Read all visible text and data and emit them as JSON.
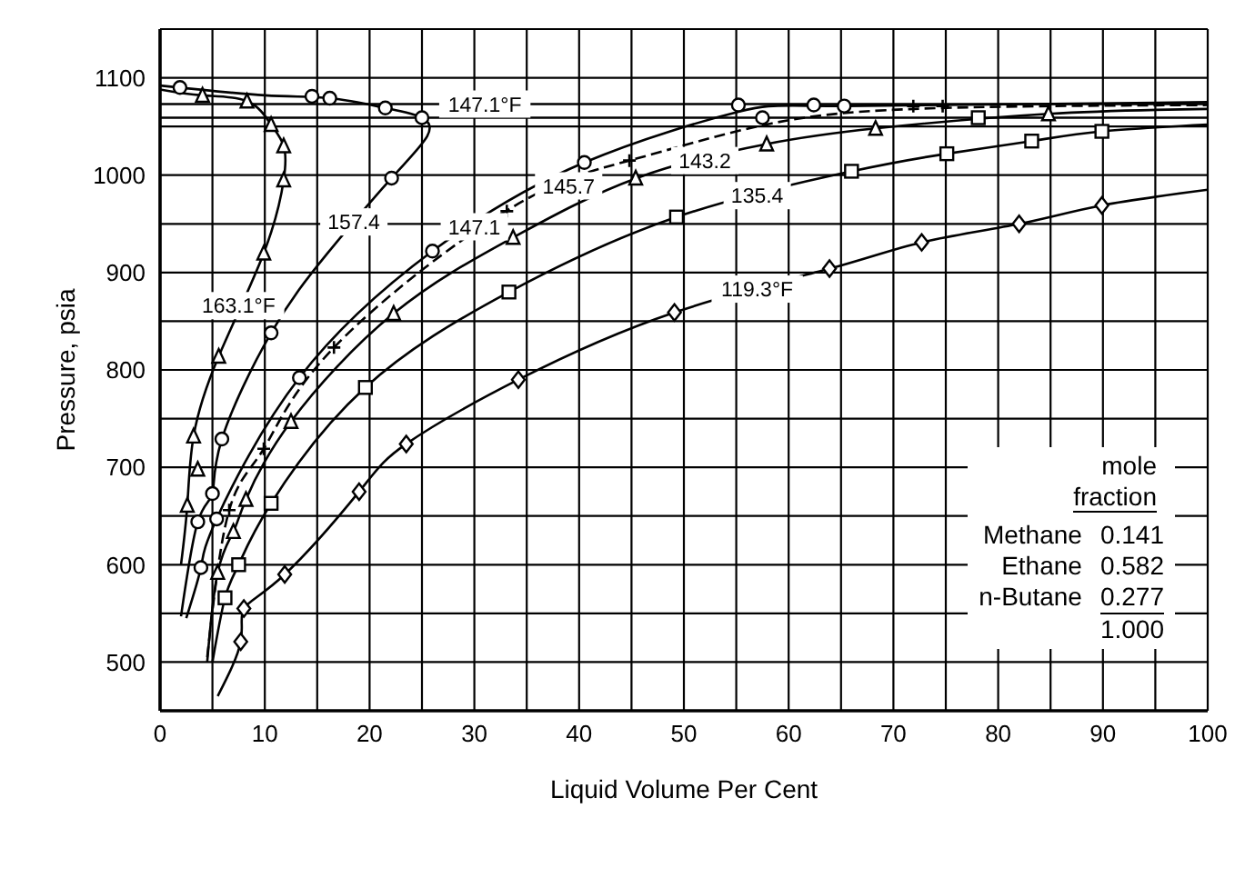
{
  "chart_data": {
    "type": "line",
    "xlabel": "Liquid Volume Per Cent",
    "ylabel": "Pressure, psia",
    "xlim": [
      0,
      100
    ],
    "ylim": [
      450,
      1150
    ],
    "xticks": [
      0,
      {
        "value": 5,
        "label": null
      },
      10,
      {
        "value": 15,
        "label": null
      },
      20,
      {
        "value": 25,
        "label": null
      },
      30,
      {
        "value": 35,
        "label": null
      },
      40,
      {
        "value": 45,
        "label": null
      },
      50,
      {
        "value": 55,
        "label": null
      },
      60,
      {
        "value": 65,
        "label": null
      },
      70,
      {
        "value": 75,
        "label": null
      },
      80,
      {
        "value": 85,
        "label": null
      },
      90,
      {
        "value": 95,
        "label": null
      },
      100
    ],
    "yticks": [
      {
        "value": 450,
        "label": null
      },
      500,
      {
        "value": 550,
        "label": null
      },
      600,
      {
        "value": 650,
        "label": null
      },
      700,
      {
        "value": 750,
        "label": null
      },
      800,
      {
        "value": 850,
        "label": null
      },
      900,
      {
        "value": 950,
        "label": null
      },
      1000,
      {
        "value": 1050,
        "label": null
      },
      1100,
      {
        "value": 1150,
        "label": null
      }
    ],
    "grid": true,
    "legend": false,
    "line_style": "solid",
    "series": [
      {
        "type": "line",
        "marker": "none",
        "color": "#000000",
        "x": [
          0,
          4,
          8.3,
          10.6,
          11.8,
          11.8,
          9.9,
          5.6,
          3.2,
          2.6,
          2.0
        ],
        "values": [
          1088,
          1082,
          1076,
          1052,
          1030,
          995,
          920,
          814,
          732,
          661,
          600
        ]
      },
      {
        "type": "line",
        "marker": "none",
        "color": "#000000",
        "x": [
          0,
          10,
          16.2,
          21.5,
          25,
          25.5,
          22.1,
          16,
          10.6,
          5.9,
          5.0,
          3.6,
          2.0
        ],
        "values": [
          1092,
          1082,
          1079,
          1069,
          1059,
          1040,
          997,
          920,
          838,
          729,
          673,
          644,
          547
        ]
      },
      {
        "type": "line",
        "marker": "none",
        "color": "#000000",
        "x": [
          2.5,
          3.9,
          5.4,
          13.3,
          26,
          40.5,
          55.2,
          65.3,
          100
        ],
        "values": [
          545,
          597,
          647,
          792,
          922,
          1013,
          1065,
          1071,
          1075
        ]
      },
      {
        "type": "line",
        "marker": "none",
        "color": "#000000",
        "line_style": "dashed",
        "x": [
          4.5,
          6.6,
          9.9,
          16.6,
          33,
          44.8,
          57,
          71.9,
          100
        ],
        "values": [
          505,
          656,
          719,
          823,
          963,
          1015,
          1050,
          1068,
          1072
        ]
      },
      {
        "type": "line",
        "marker": "none",
        "color": "#000000",
        "x": [
          4.5,
          5.5,
          7,
          8.2,
          12.5,
          22.3,
          33.7,
          45.5,
          57.9,
          68.3,
          84.8,
          100
        ],
        "values": [
          500,
          592,
          634,
          667,
          747,
          858,
          936,
          997,
          1032,
          1048,
          1063,
          1068
        ]
      },
      {
        "type": "line",
        "marker": "none",
        "color": "#000000",
        "x": [
          5,
          6.2,
          7.5,
          10.6,
          19.6,
          33.3,
          49.3,
          66,
          75.1,
          83.2,
          89.9,
          100
        ],
        "values": [
          500,
          566,
          600,
          663,
          782,
          880,
          957,
          1004,
          1022,
          1035,
          1045,
          1052
        ]
      },
      {
        "type": "line",
        "marker": "none",
        "color": "#000000",
        "x": [
          5.5,
          7.7,
          8,
          11.9,
          19,
          23.5,
          34.2,
          49.1,
          63.9,
          72.7,
          82,
          89.9,
          100
        ],
        "values": [
          465,
          521,
          555,
          590,
          675,
          724,
          790,
          859,
          904,
          931,
          950,
          969,
          985
        ]
      },
      {
        "type": "scatter",
        "marker": "triangle",
        "color": "#000000",
        "x": [
          4.05,
          8.3,
          10.6,
          11.8,
          11.8,
          9.9,
          5.6,
          3.2,
          3.6,
          2.6
        ],
        "values": [
          1082,
          1076,
          1052,
          1030,
          995,
          920,
          814,
          732,
          698,
          661
        ]
      },
      {
        "type": "scatter",
        "marker": "circle",
        "color": "#000000",
        "x": [
          1.9,
          14.5,
          16.2,
          21.5,
          25.0,
          22.1,
          10.6,
          5.9,
          5.0,
          3.6
        ],
        "values": [
          1090,
          1081,
          1079,
          1069,
          1059,
          997,
          838,
          729,
          673,
          644
        ]
      },
      {
        "type": "scatter",
        "marker": "circle",
        "color": "#000000",
        "x": [
          55.2,
          57.5,
          62.4,
          65.3,
          40.5,
          26.0,
          13.3,
          5.4,
          3.9
        ],
        "values": [
          1072,
          1059,
          1072,
          1071,
          1013,
          922,
          792,
          647,
          597
        ]
      },
      {
        "type": "scatter",
        "marker": "cross",
        "color": "#000000",
        "x": [
          71.9,
          74.7,
          44.8,
          33.1,
          16.6,
          9.9,
          6.6
        ],
        "values": [
          1071,
          1071,
          1015,
          963,
          823,
          719,
          656
        ]
      },
      {
        "type": "scatter",
        "marker": "triangle",
        "color": "#000000",
        "x": [
          45.4,
          57.9,
          68.3,
          84.8,
          33.7,
          22.3,
          12.5,
          8.2,
          7.0,
          5.5
        ],
        "values": [
          997,
          1032,
          1048,
          1063,
          936,
          858,
          747,
          667,
          634,
          592
        ]
      },
      {
        "type": "scatter",
        "marker": "square",
        "color": "#000000",
        "x": [
          78.1,
          49.3,
          66.0,
          75.1,
          83.2,
          89.9,
          33.3,
          19.6,
          10.6,
          7.5,
          6.2
        ],
        "values": [
          1059,
          957,
          1004,
          1022,
          1035,
          1045,
          880,
          782,
          663,
          600,
          566
        ]
      },
      {
        "type": "scatter",
        "marker": "diamond",
        "color": "#000000",
        "x": [
          89.9,
          82.0,
          72.7,
          63.9,
          49.1,
          34.2,
          23.5,
          19.0,
          11.9,
          8.0,
          7.7
        ],
        "values": [
          969,
          950,
          931,
          904,
          859,
          790,
          724,
          675,
          590,
          555,
          521
        ]
      }
    ],
    "ref_lines": [
      {
        "axis": "y",
        "value": 1073,
        "color": "#000000"
      },
      {
        "axis": "y",
        "value": 1059,
        "color": "#000000"
      }
    ],
    "annotations": [
      {
        "text": "147.1°F",
        "x": 31,
        "y": 1073
      },
      {
        "text": "163.1°F",
        "x": 7.5,
        "y": 866
      },
      {
        "text": "157.4",
        "x": 18.5,
        "y": 952
      },
      {
        "text": "147.1",
        "x": 30,
        "y": 947
      },
      {
        "text": "145.7",
        "x": 39,
        "y": 989
      },
      {
        "text": "143.2",
        "x": 52,
        "y": 1015
      },
      {
        "text": "135.4",
        "x": 57,
        "y": 979
      },
      {
        "text": "119.3°F",
        "x": 57,
        "y": 883
      },
      "mole",
      "fraction",
      "Methane",
      "0.141",
      "Ethane",
      "0.582",
      "n-Butane",
      "0.277",
      "1.000"
    ]
  }
}
